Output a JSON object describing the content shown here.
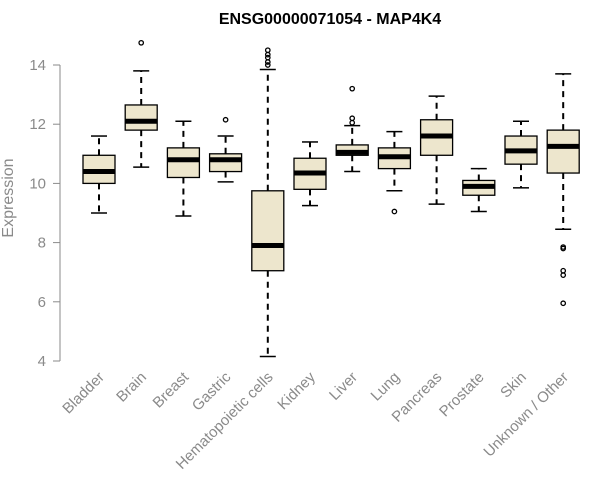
{
  "chart_data": {
    "type": "boxplot",
    "title": "ENSG00000071054 - MAP4K4",
    "xlabel": "",
    "ylabel": "Expression",
    "ylim": [
      4,
      14
    ],
    "yticks": [
      "4",
      "6",
      "8",
      "10",
      "12",
      "14"
    ],
    "grid": false,
    "colors": {
      "box_fill": "#ede6cd",
      "median": "#000000",
      "axis": "#8a8a8a",
      "stroke": "#000000"
    },
    "categories": [
      "Bladder",
      "Brain",
      "Breast",
      "Gastric",
      "Hematopoietic cells",
      "Kidney",
      "Liver",
      "Lung",
      "Pancreas",
      "Prostate",
      "Skin",
      "Unknown / Other"
    ],
    "boxes": [
      {
        "category": "Bladder",
        "whisker_low": 9.0,
        "q1": 10.0,
        "median": 10.4,
        "q3": 10.95,
        "whisker_high": 11.6,
        "outliers": []
      },
      {
        "category": "Brain",
        "whisker_low": 10.55,
        "q1": 11.8,
        "median": 12.1,
        "q3": 12.65,
        "whisker_high": 13.8,
        "outliers": [
          14.75
        ]
      },
      {
        "category": "Breast",
        "whisker_low": 8.9,
        "q1": 10.2,
        "median": 10.8,
        "q3": 11.2,
        "whisker_high": 12.1,
        "outliers": []
      },
      {
        "category": "Gastric",
        "whisker_low": 10.05,
        "q1": 10.4,
        "median": 10.8,
        "q3": 11.0,
        "whisker_high": 11.6,
        "outliers": [
          12.15
        ]
      },
      {
        "category": "Hematopoietic cells",
        "whisker_low": 4.15,
        "q1": 7.05,
        "median": 7.9,
        "q3": 9.75,
        "whisker_high": 13.85,
        "outliers": [
          14.0,
          14.1,
          14.25,
          14.35,
          14.5
        ]
      },
      {
        "category": "Kidney",
        "whisker_low": 9.25,
        "q1": 9.8,
        "median": 10.35,
        "q3": 10.85,
        "whisker_high": 11.4,
        "outliers": []
      },
      {
        "category": "Liver",
        "whisker_low": 10.4,
        "q1": 10.95,
        "median": 11.05,
        "q3": 11.3,
        "whisker_high": 11.95,
        "outliers": [
          12.05,
          12.2,
          13.2
        ]
      },
      {
        "category": "Lung",
        "whisker_low": 9.75,
        "q1": 10.5,
        "median": 10.9,
        "q3": 11.2,
        "whisker_high": 11.75,
        "outliers": [
          9.05
        ]
      },
      {
        "category": "Pancreas",
        "whisker_low": 9.3,
        "q1": 10.95,
        "median": 11.6,
        "q3": 12.15,
        "whisker_high": 12.95,
        "outliers": []
      },
      {
        "category": "Prostate",
        "whisker_low": 9.05,
        "q1": 9.6,
        "median": 9.9,
        "q3": 10.1,
        "whisker_high": 10.5,
        "outliers": []
      },
      {
        "category": "Skin",
        "whisker_low": 9.85,
        "q1": 10.65,
        "median": 11.1,
        "q3": 11.6,
        "whisker_high": 12.1,
        "outliers": []
      },
      {
        "category": "Unknown / Other",
        "whisker_low": 8.45,
        "q1": 10.35,
        "median": 11.25,
        "q3": 11.8,
        "whisker_high": 13.7,
        "outliers": [
          5.95,
          6.9,
          7.05,
          7.8,
          7.85
        ]
      }
    ]
  }
}
